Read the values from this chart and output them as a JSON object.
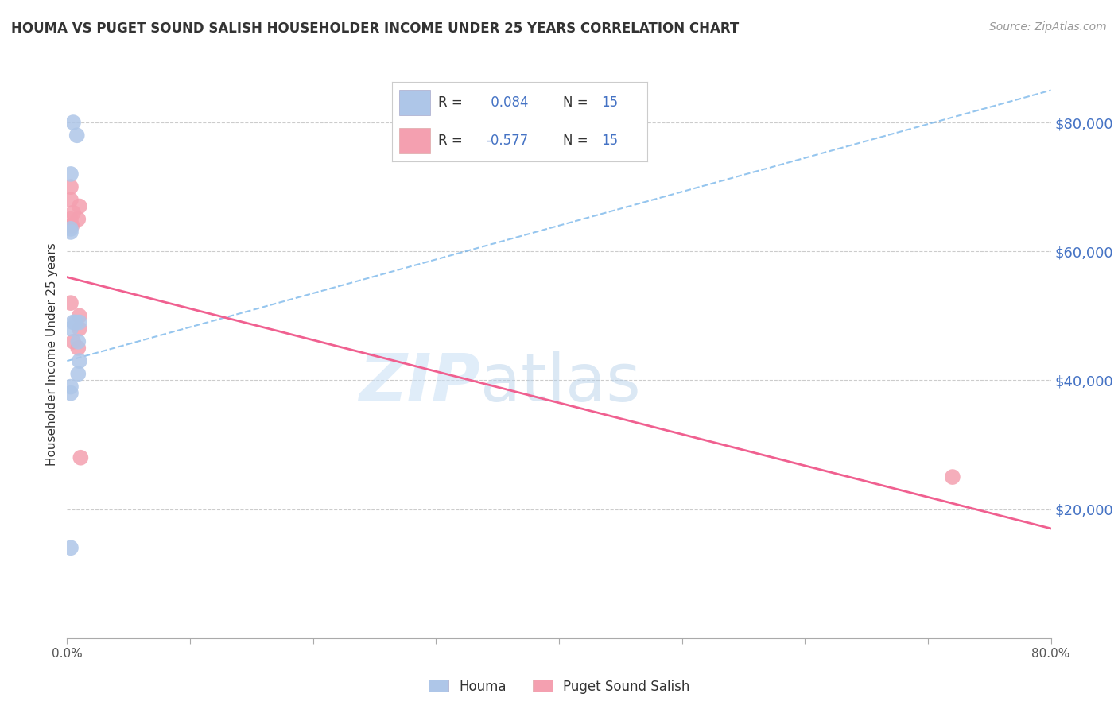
{
  "title": "HOUMA VS PUGET SOUND SALISH HOUSEHOLDER INCOME UNDER 25 YEARS CORRELATION CHART",
  "source": "Source: ZipAtlas.com",
  "ylabel": "Householder Income Under 25 years",
  "houma_x": [
    0.008,
    0.003,
    0.005,
    0.003,
    0.003,
    0.003,
    0.005,
    0.007,
    0.009,
    0.01,
    0.009,
    0.01,
    0.003,
    0.003,
    0.003
  ],
  "houma_y": [
    78000,
    72000,
    80000,
    63000,
    63500,
    48000,
    49000,
    49000,
    46000,
    49000,
    41000,
    43000,
    38000,
    39000,
    14000
  ],
  "puget_x": [
    0.003,
    0.003,
    0.005,
    0.003,
    0.003,
    0.004,
    0.003,
    0.009,
    0.01,
    0.01,
    0.01,
    0.009,
    0.011,
    0.72,
    0.005
  ],
  "puget_y": [
    68000,
    70000,
    66000,
    64000,
    65000,
    64000,
    52000,
    65000,
    67000,
    50000,
    48000,
    45000,
    28000,
    25000,
    46000
  ],
  "houma_R": 0.084,
  "houma_N": 15,
  "puget_R": -0.577,
  "puget_N": 15,
  "houma_color": "#aec6e8",
  "puget_color": "#f4a0b0",
  "houma_line_color": "#6aaee8",
  "puget_line_color": "#f06090",
  "houma_line_x": [
    0.0,
    0.8
  ],
  "houma_line_y": [
    43000,
    85000
  ],
  "puget_line_x": [
    0.0,
    0.8
  ],
  "puget_line_y": [
    56000,
    17000
  ],
  "ytick_values": [
    80000,
    60000,
    40000,
    20000
  ],
  "ytick_labels": [
    "$80,000",
    "$60,000",
    "$40,000",
    "$20,000"
  ],
  "xlim": [
    0.0,
    0.8
  ],
  "ylim": [
    0,
    88000
  ],
  "watermark_zip": "ZIP",
  "watermark_atlas": "atlas",
  "background_color": "#ffffff",
  "grid_color": "#cccccc",
  "legend_r_color": "#4472c4",
  "legend_n_color": "#4472c4"
}
